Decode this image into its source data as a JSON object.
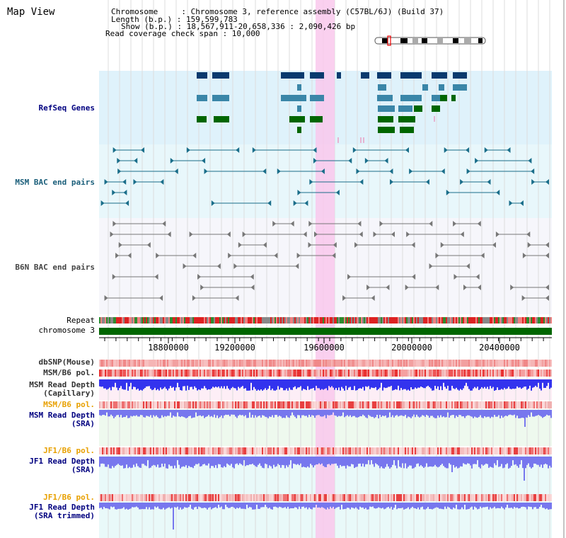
{
  "header": {
    "title": "Map View",
    "chromosome_line": "Chromosome     : Chromosome 3, reference assembly (C57BL/6J) (Build 37)",
    "length_line": "Length (b.p.) : 159,599,783",
    "show_line": "Show (b.p.) : 18,567,911-20,658,336 : 2,090,426 bp",
    "coverage_line": "Read coverage check span : 10,000"
  },
  "tracks": {
    "refseq": "RefSeq Genes",
    "msm_bac": "MSM BAC end pairs",
    "b6n_bac": "B6N BAC end pairs",
    "repeat": "Repeat",
    "chromosome": "chromosome 3",
    "dbsnp": "dbSNP(Mouse)",
    "msm_b6_pol_1": "MSM/B6 pol.",
    "msm_depth_cap_1": "MSM Read Depth",
    "msm_depth_cap_2": "(Capillary)",
    "msm_b6_pol_2": "MSM/B6 pol.",
    "msm_depth_sra_1": "MSM Read Depth",
    "msm_depth_sra_2": "(SRA)",
    "jf1_pol_1": "JF1/B6 pol.",
    "jf1_depth_sra_1": "JF1 Read Depth",
    "jf1_depth_sra_2": "(SRA)",
    "jf1_pol_2": "JF1/B6 pol.",
    "jf1_depth_trim_1": "JF1 Read Depth",
    "jf1_depth_trim_2": "(SRA trimmed)"
  },
  "axis": {
    "ticks": [
      "18800000",
      "19200000",
      "19600000",
      "20000000",
      "20400000"
    ]
  },
  "colors": {
    "refseq_bg": "#dff2fb",
    "bac_bg": "#e8f7fb",
    "highlight": "#f9c8ec",
    "chromosome": "#006600",
    "depth": "#3333ee",
    "depth_light": "#7777ee"
  }
}
